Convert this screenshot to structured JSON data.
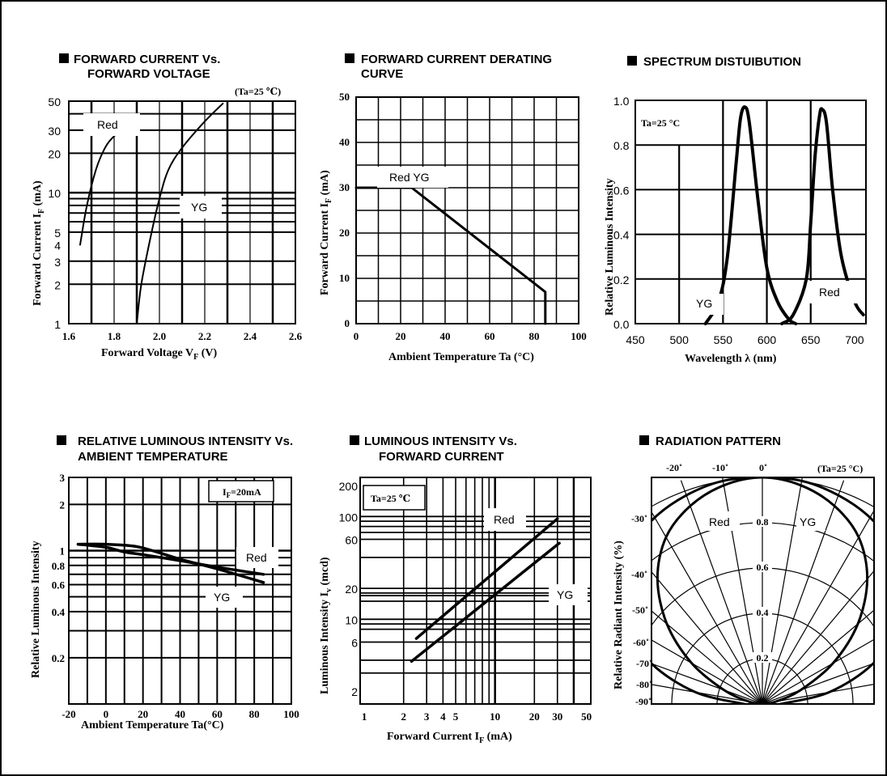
{
  "colors": {
    "ink": "#000000",
    "background": "#ffffff"
  },
  "chart_data": [
    {
      "id": "fwd-current-voltage",
      "type": "line",
      "title_lines": [
        "FORWARD  CURRENT Vs.",
        "FORWARD  VOLTAGE"
      ],
      "condition": "(Ta=25 ℃)",
      "xlabel": "Forward Voltage V",
      "xlabel_sub": "F",
      "xlabel_unit": "(V)",
      "ylabel": "Forward Current I",
      "ylabel_sub": "F",
      "ylabel_unit": "(mA)",
      "xlim": [
        1.6,
        2.6
      ],
      "ylim": [
        1,
        50
      ],
      "y_scale": "log",
      "x_ticks": [
        "1.6",
        "1.8",
        "2.0",
        "2.2",
        "2.4",
        "2.6"
      ],
      "y_ticks": [
        "50",
        "30",
        "20",
        "10",
        "5",
        "4",
        "3",
        "2",
        "1"
      ],
      "series": [
        {
          "name": "Red",
          "x": [
            1.65,
            1.68,
            1.72,
            1.76,
            1.8,
            1.86,
            1.9
          ],
          "y": [
            4.0,
            8.0,
            15.0,
            22.0,
            27.0,
            33.0,
            38.0
          ]
        },
        {
          "name": "YG",
          "x": [
            1.9,
            1.92,
            1.96,
            2.0,
            2.04,
            2.1,
            2.2,
            2.28
          ],
          "y": [
            1.0,
            2.0,
            4.5,
            9.0,
            15.0,
            22.0,
            35.0,
            48.0
          ]
        }
      ]
    },
    {
      "id": "derating-curve",
      "type": "line",
      "title_lines": [
        "FORWARD CURRENT DERATING",
        "CURVE"
      ],
      "xlabel": "Ambient Temperature Ta (°C)",
      "ylabel": "Forward  Current  I",
      "ylabel_sub": "F",
      "ylabel_unit": "(mA)",
      "xlim": [
        0,
        100
      ],
      "ylim": [
        0,
        50
      ],
      "x_ticks": [
        "0",
        "20",
        "40",
        "60",
        "80",
        "100"
      ],
      "y_ticks": [
        "50",
        "40",
        "30",
        "20",
        "10",
        "0"
      ],
      "series": [
        {
          "name": "Red  YG",
          "x": [
            0,
            25,
            85,
            85
          ],
          "y": [
            30,
            30,
            7,
            0
          ]
        }
      ]
    },
    {
      "id": "spectrum",
      "type": "line",
      "title_lines": [
        "SPECTRUM DISTUIBUTION"
      ],
      "condition": "Ta=25 °C",
      "xlabel": "Wavelength  λ (nm)",
      "ylabel": "Relative Luminous Intensity",
      "xlim": [
        450,
        700
      ],
      "ylim": [
        0,
        1.0
      ],
      "x_ticks": [
        "450",
        "500",
        "550",
        "600",
        "650",
        "700"
      ],
      "y_ticks": [
        "1.0",
        "0.8",
        "0.6",
        "0.4",
        "0.2",
        "0.0"
      ],
      "series": [
        {
          "name": "YG",
          "x": [
            530,
            545,
            555,
            565,
            570,
            575,
            580,
            590,
            600,
            612,
            625,
            633
          ],
          "y": [
            0.0,
            0.1,
            0.3,
            0.72,
            0.92,
            0.97,
            0.9,
            0.55,
            0.25,
            0.1,
            0.02,
            0.0
          ]
        },
        {
          "name": "Red",
          "x": [
            617,
            630,
            645,
            650,
            655,
            660,
            663,
            668,
            675,
            685,
            700,
            710
          ],
          "y": [
            0.0,
            0.04,
            0.2,
            0.45,
            0.75,
            0.93,
            0.96,
            0.9,
            0.6,
            0.3,
            0.1,
            0.04
          ]
        }
      ]
    },
    {
      "id": "rel-intensity-temp",
      "type": "line",
      "title_lines": [
        "RELATIVE  LUMINOUS INTENSITY Vs.",
        "AMBIENT TEMPERATURE"
      ],
      "condition": "I",
      "condition_sub": "F",
      "condition_tail": "=20mA",
      "xlabel": "Ambient Temperature Ta(°C)",
      "ylabel": "Relative  Luminous  Intensity",
      "xlim": [
        -20,
        100
      ],
      "ylim": [
        0.1,
        3
      ],
      "y_scale": "log",
      "x_ticks": [
        "-20",
        "0",
        "20",
        "40",
        "60",
        "80",
        "100"
      ],
      "y_ticks": [
        "3",
        "2",
        "1",
        "0.8",
        "0.6",
        "0.4",
        "0.2"
      ],
      "series": [
        {
          "name": "Red",
          "x": [
            -15,
            0,
            10,
            20,
            40,
            60,
            85
          ],
          "y": [
            1.1,
            1.05,
            0.98,
            0.94,
            0.86,
            0.78,
            0.7
          ]
        },
        {
          "name": "YG",
          "x": [
            -15,
            0,
            15,
            25,
            40,
            60,
            85
          ],
          "y": [
            1.1,
            1.1,
            1.07,
            1.0,
            0.88,
            0.76,
            0.62
          ]
        }
      ]
    },
    {
      "id": "intensity-current",
      "type": "line",
      "title_lines": [
        "LUMINOUS  INTENSITY Vs.",
        "FORWARD  CURRENT"
      ],
      "condition": "Ta=25 ℃",
      "xlabel": "Forward Current I",
      "xlabel_sub": "F",
      "xlabel_unit": "(mA)",
      "ylabel": "Luminous Intensity I",
      "ylabel_sub": "v",
      "ylabel_unit": "(mcd)",
      "xlim": [
        1,
        50
      ],
      "ylim": [
        1.5,
        200
      ],
      "x_scale": "log",
      "y_scale": "log",
      "x_ticks": [
        "1",
        "2",
        "3",
        "4",
        "5",
        "10",
        "20",
        "30",
        "50"
      ],
      "y_ticks": [
        "200",
        "100",
        "60",
        "20",
        "10",
        "6",
        "2"
      ],
      "series": [
        {
          "name": "Red",
          "x": [
            2.5,
            30
          ],
          "y": [
            6.5,
            95
          ]
        },
        {
          "name": "YG",
          "x": [
            2.3,
            31
          ],
          "y": [
            3.9,
            55
          ]
        }
      ]
    },
    {
      "id": "radiation-pattern",
      "type": "polar",
      "title_lines": [
        "RADIATION PATTERN"
      ],
      "condition": "(Ta=25 °C)",
      "ylabel": "Relative Radiant Intensity",
      "ylabel_unit": "(%)",
      "angle_ticks": [
        "-20˚",
        "-10˚",
        "0˚",
        "-30˚",
        "-40˚",
        "-50˚",
        "-60˚",
        "-70˚",
        "-80˚",
        "-90˚"
      ],
      "radial_ticks": [
        "0.8",
        "0.6",
        "0.4",
        "0.2"
      ],
      "series": [
        {
          "name": "Red",
          "angles": [
            0,
            10,
            20,
            30,
            40,
            50,
            60,
            70,
            80,
            90
          ],
          "values": [
            1.0,
            1.0,
            0.98,
            0.95,
            0.9,
            0.82,
            0.7,
            0.52,
            0.3,
            0.08
          ]
        },
        {
          "name": "YG",
          "angles": [
            0,
            10,
            20,
            30,
            40,
            50,
            60,
            70,
            80,
            90
          ],
          "values": [
            1.0,
            0.98,
            0.93,
            0.85,
            0.72,
            0.55,
            0.36,
            0.18,
            0.06,
            0.0
          ]
        }
      ]
    }
  ]
}
